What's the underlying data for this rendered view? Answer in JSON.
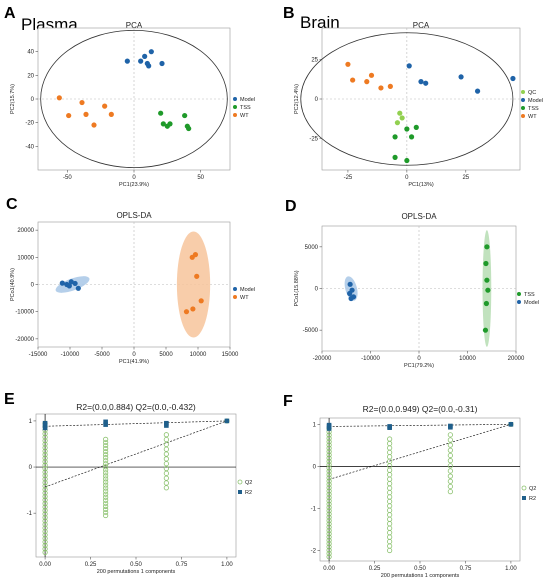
{
  "panel_labels": {
    "A": {
      "letter": "A",
      "name": "Plasma"
    },
    "B": {
      "letter": "B",
      "name": "Brain"
    },
    "C": {
      "letter": "C"
    },
    "D": {
      "letter": "D"
    },
    "E": {
      "letter": "E"
    },
    "F": {
      "letter": "F"
    }
  },
  "colors": {
    "Model": "#1f63a8",
    "TSS": "#1f9a2a",
    "WT": "#ee7a22",
    "QC": "#92d050",
    "Q2": "#8cc26f",
    "R2": "#1f5f8b"
  },
  "chart_data": [
    {
      "id": "A",
      "type": "scatter",
      "title": "PCA",
      "xlabel": "PC1(23.9%)",
      "ylabel": "PC2(15.7%)",
      "xlim": [
        -72,
        72
      ],
      "ylim": [
        -60,
        60
      ],
      "xticks": [
        "-50",
        "0",
        "50"
      ],
      "xtick_values": [
        -50,
        0,
        50
      ],
      "yticks": [
        "40",
        "20",
        "0",
        "-20",
        "-40"
      ],
      "ytick_values": [
        40,
        20,
        0,
        -20,
        -40
      ],
      "ellipse": {
        "cx": 0,
        "cy": 0,
        "rx": 70,
        "ry": 58
      },
      "legend": [
        "Model",
        "TSS",
        "WT"
      ],
      "series": [
        {
          "name": "Model",
          "points": [
            [
              -5,
              32
            ],
            [
              5,
              32
            ],
            [
              8,
              36
            ],
            [
              13,
              40
            ],
            [
              21,
              30
            ],
            [
              10,
              30
            ],
            [
              11,
              28
            ]
          ]
        },
        {
          "name": "TSS",
          "points": [
            [
              20,
              -12
            ],
            [
              22,
              -21
            ],
            [
              25,
              -23
            ],
            [
              27,
              -21
            ],
            [
              38,
              -14
            ],
            [
              40,
              -23
            ],
            [
              41,
              -25
            ]
          ]
        },
        {
          "name": "WT",
          "points": [
            [
              -56,
              1
            ],
            [
              -49,
              -14
            ],
            [
              -39,
              -3
            ],
            [
              -36,
              -13
            ],
            [
              -30,
              -22
            ],
            [
              -17,
              -13
            ],
            [
              -22,
              -6
            ]
          ]
        }
      ]
    },
    {
      "id": "B",
      "type": "scatter",
      "title": "PCA",
      "xlabel": "PC1(13%)",
      "ylabel": "PC2(12.4%)",
      "xlim": [
        -36,
        48
      ],
      "ylim": [
        -45,
        45
      ],
      "xticks": [
        "-25",
        "0",
        "25"
      ],
      "xtick_values": [
        -25,
        0,
        25
      ],
      "yticks": [
        "25",
        "0",
        "-25"
      ],
      "ytick_values": [
        25,
        0,
        -25
      ],
      "ellipse": {
        "cx": 0,
        "cy": 0,
        "rx": 45,
        "ry": 42
      },
      "legend": [
        "QC",
        "Model",
        "TSS",
        "WT"
      ],
      "series": [
        {
          "name": "QC",
          "points": [
            [
              -3,
              -9
            ],
            [
              -2,
              -12
            ],
            [
              -4,
              -15
            ]
          ]
        },
        {
          "name": "Model",
          "points": [
            [
              1,
              21
            ],
            [
              6,
              11
            ],
            [
              8,
              10
            ],
            [
              23,
              14
            ],
            [
              30,
              5
            ],
            [
              45,
              13
            ]
          ]
        },
        {
          "name": "TSS",
          "points": [
            [
              0,
              -19
            ],
            [
              2,
              -24
            ],
            [
              4,
              -18
            ],
            [
              -5,
              -24
            ],
            [
              -5,
              -37
            ],
            [
              0,
              -39
            ]
          ]
        },
        {
          "name": "WT",
          "points": [
            [
              -25,
              22
            ],
            [
              -23,
              12
            ],
            [
              -17,
              11
            ],
            [
              -15,
              15
            ],
            [
              -11,
              7
            ],
            [
              -7,
              8
            ]
          ]
        }
      ]
    },
    {
      "id": "C",
      "type": "scatter",
      "title": "OPLS-DA",
      "xlabel": "PC1(41.9%)",
      "ylabel": "PCo1(40.9%)",
      "xlim": [
        -15000,
        15000
      ],
      "ylim": [
        -23000,
        23000
      ],
      "xticks": [
        "-15000",
        "-10000",
        "-5000",
        "0",
        "5000",
        "10000",
        "15000"
      ],
      "xtick_values": [
        -15000,
        -10000,
        -5000,
        0,
        5000,
        10000,
        15000
      ],
      "yticks": [
        "20000",
        "10000",
        "0",
        "-10000",
        "-20000"
      ],
      "ytick_values": [
        20000,
        10000,
        0,
        -10000,
        -20000
      ],
      "ellipses": [
        {
          "group": "Model",
          "cx": -9600,
          "cy": 0,
          "rx": 2800,
          "ry": 2200,
          "rotate": 20
        },
        {
          "group": "WT",
          "cx": 9300,
          "cy": 0,
          "rx": 2600,
          "ry": 19500,
          "rotate": 0
        }
      ],
      "legend": [
        "Model",
        "WT"
      ],
      "series": [
        {
          "name": "Model",
          "points": [
            [
              -11200,
              500
            ],
            [
              -10500,
              0
            ],
            [
              -9800,
              1000
            ],
            [
              -9200,
              400
            ],
            [
              -8700,
              -1400
            ],
            [
              -10100,
              -500
            ]
          ]
        },
        {
          "name": "WT",
          "points": [
            [
              8200,
              -10000
            ],
            [
              9200,
              -9000
            ],
            [
              9800,
              3000
            ],
            [
              10500,
              -6000
            ],
            [
              9600,
              11000
            ],
            [
              9100,
              10000
            ]
          ]
        }
      ]
    },
    {
      "id": "D",
      "type": "scatter",
      "title": "OPLS-DA",
      "xlabel": "PC1(79.2%)",
      "ylabel": "PCo1(15.88%)",
      "xlim": [
        -20000,
        20000
      ],
      "ylim": [
        -7500,
        7500
      ],
      "xticks": [
        "-20000",
        "-10000",
        "0",
        "10000",
        "20000"
      ],
      "xtick_values": [
        -20000,
        -10000,
        0,
        10000,
        20000
      ],
      "yticks": [
        "5000",
        "0",
        "-5000"
      ],
      "ytick_values": [
        5000,
        0,
        -5000
      ],
      "ellipses": [
        {
          "group": "Model",
          "cx": -14000,
          "cy": 0,
          "rx": 1200,
          "ry": 1500,
          "rotate": 15
        },
        {
          "group": "TSS",
          "cx": 14000,
          "cy": 0,
          "rx": 900,
          "ry": 7000,
          "rotate": 0
        }
      ],
      "legend": [
        "TSS",
        "Model"
      ],
      "series": [
        {
          "name": "TSS",
          "points": [
            [
              14000,
              5000
            ],
            [
              13800,
              3000
            ],
            [
              14000,
              1000
            ],
            [
              14200,
              -200
            ],
            [
              13900,
              -1800
            ],
            [
              13700,
              -5000
            ]
          ]
        },
        {
          "name": "Model",
          "points": [
            [
              -14200,
              500
            ],
            [
              -13800,
              -200
            ],
            [
              -14300,
              -600
            ],
            [
              -13500,
              -1000
            ],
            [
              -14000,
              -1200
            ]
          ]
        }
      ]
    },
    {
      "id": "E",
      "type": "scatter",
      "title": "R2=(0.0,0.884)   Q2=(0.0,-0.432)",
      "xlabel": "200 permutations 1 components",
      "xlim": [
        -0.05,
        1.05
      ],
      "ylim": [
        -1.95,
        1.15
      ],
      "xticks": [
        "0.00",
        "0.25",
        "0.50",
        "0.75",
        "1.00"
      ],
      "xtick_values": [
        0,
        0.25,
        0.5,
        0.75,
        1.0
      ],
      "yticks": [
        "1",
        "0",
        "-1"
      ],
      "ytick_values": [
        1,
        0,
        -1
      ],
      "legend": [
        "Q2",
        "R2"
      ],
      "hline": 0,
      "q2_line": [
        [
          0,
          -0.432
        ],
        [
          1.0,
          1.0
        ]
      ],
      "r2_line": [
        [
          0,
          0.884
        ],
        [
          1.0,
          1.0
        ]
      ],
      "q2_columns": [
        {
          "x": 0.0,
          "ymin": -1.85,
          "ymax": 0.95,
          "n": 38
        },
        {
          "x": 0.333,
          "ymin": -1.05,
          "ymax": 0.6,
          "n": 26
        },
        {
          "x": 0.667,
          "ymin": -0.45,
          "ymax": 0.7,
          "n": 12
        }
      ],
      "q2_final": [
        1.0,
        1.0
      ],
      "r2_points": [
        [
          0,
          0.9
        ],
        [
          0,
          0.95
        ],
        [
          0,
          0.85
        ],
        [
          0.333,
          0.92
        ],
        [
          0.333,
          0.98
        ],
        [
          0.667,
          0.95
        ],
        [
          0.667,
          0.9
        ],
        [
          1.0,
          1.0
        ]
      ]
    },
    {
      "id": "F",
      "type": "scatter",
      "title": "R2=(0.0,0.949)   Q2=(0.0,-0.31)",
      "xlabel": "200 permutations 1 components",
      "xlim": [
        -0.05,
        1.05
      ],
      "ylim": [
        -2.25,
        1.15
      ],
      "xticks": [
        "0.00",
        "0.25",
        "0.50",
        "0.75",
        "1.00"
      ],
      "xtick_values": [
        0,
        0.25,
        0.5,
        0.75,
        1.0
      ],
      "yticks": [
        "1",
        "0",
        "-1",
        "-2"
      ],
      "ytick_values": [
        1,
        0,
        -1,
        -2
      ],
      "legend": [
        "Q2",
        "R2"
      ],
      "hline": 0,
      "q2_line": [
        [
          0,
          -0.31
        ],
        [
          1.0,
          1.0
        ]
      ],
      "r2_line": [
        [
          0,
          0.949
        ],
        [
          1.0,
          1.0
        ]
      ],
      "q2_columns": [
        {
          "x": 0.0,
          "ymin": -2.15,
          "ymax": 0.9,
          "n": 40
        },
        {
          "x": 0.333,
          "ymin": -2.0,
          "ymax": 0.65,
          "n": 26
        },
        {
          "x": 0.667,
          "ymin": -0.6,
          "ymax": 0.75,
          "n": 12
        }
      ],
      "q2_final": [
        1.0,
        1.0
      ],
      "r2_points": [
        [
          0,
          0.95
        ],
        [
          0,
          0.9
        ],
        [
          0,
          0.98
        ],
        [
          0.333,
          0.95
        ],
        [
          0.333,
          0.92
        ],
        [
          0.667,
          0.96
        ],
        [
          0.667,
          0.93
        ],
        [
          1.0,
          1.0
        ]
      ]
    }
  ]
}
